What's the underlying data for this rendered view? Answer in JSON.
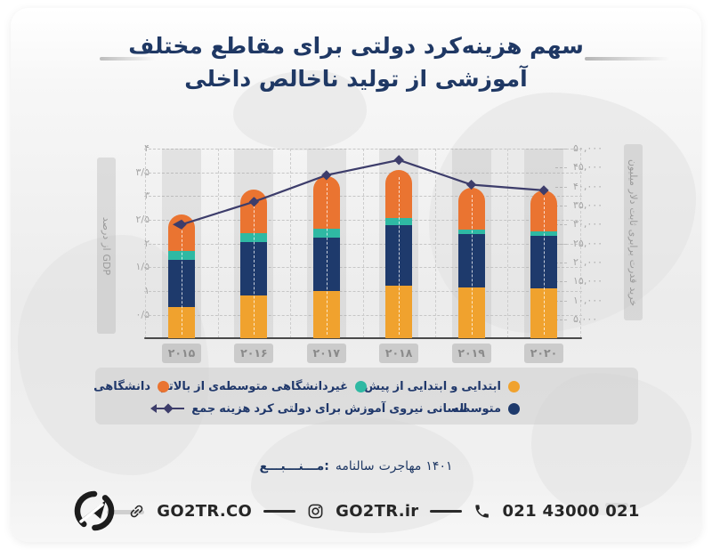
{
  "title": {
    "line1": "سهم هزینه‌کرد دولتی برای مقاطع مختلف",
    "line2": "آموزشی از تولید ناخالص داخلی",
    "color": "#1F3864"
  },
  "chart_data": {
    "type": "bar",
    "stacked": true,
    "grid": true,
    "legend_position": "bottom",
    "categories": [
      "۲۰۱۵",
      "۲۰۱۶",
      "۲۰۱۷",
      "۲۰۱۸",
      "۲۰۱۹",
      "۲۰۲۰"
    ],
    "series": [
      {
        "name": "پیش از ابتدایی و ابتدایی",
        "color": "#F0A22E",
        "values": [
          0.66,
          0.9,
          1.0,
          1.11,
          1.07,
          1.05
        ]
      },
      {
        "name": "متوسطه",
        "color": "#1E3A6C",
        "values": [
          0.99,
          1.13,
          1.13,
          1.28,
          1.13,
          1.11
        ]
      },
      {
        "name": "بالاتر از متوسطه‌ی غیردانشگاهی",
        "color": "#2FB9A3",
        "values": [
          0.19,
          0.19,
          0.19,
          0.15,
          0.1,
          0.09
        ]
      },
      {
        "name": "دانشگاهی",
        "color": "#EA7431",
        "values": [
          0.77,
          0.92,
          1.09,
          1.01,
          0.88,
          0.86
        ]
      }
    ],
    "line": {
      "name": "جمع هزینه کرد دولتی برای آموزش نیروی انسانی",
      "color": "#3D3D6B",
      "axis": "right",
      "values": [
        30000,
        36000,
        43000,
        47000,
        40500,
        39000
      ]
    },
    "left_axis": {
      "label": "درصد از GDP",
      "min": 0,
      "max": 4,
      "ticks": [
        "۰",
        "۰/۵",
        "۱",
        "۱/۵",
        "۲",
        "۲/۵",
        "۳",
        "۳/۵",
        "۴"
      ]
    },
    "right_axis": {
      "label": "میلیون دلار ثابت برابری قدرت خرید",
      "min": 0,
      "max": 50000,
      "ticks": [
        "۰",
        "۵,۰۰۰",
        "۱۰,۰۰۰",
        "۱۵,۰۰۰",
        "۲۰,۰۰۰",
        "۲۵,۰۰۰",
        "۳۰,۰۰۰",
        "۳۵,۰۰۰",
        "۴۰,۰۰۰",
        "۴۵,۰۰۰",
        "۵۰,۰۰۰"
      ]
    }
  },
  "legend": {
    "row1": [
      {
        "label": "پیش از ابتدایی و ابتدایی",
        "color": "#F0A22E"
      },
      {
        "label": "بالاتر از متوسطه‌ی غیردانشگاهی",
        "color": "#2FB9A3"
      },
      {
        "label": "دانشگاهی",
        "color": "#EA7431"
      }
    ],
    "row2_dot": {
      "label": "متوسطه",
      "color": "#1E3A6C"
    },
    "row2_line": {
      "label": "جمع هزینه کرد دولتی برای آموزش نیروی انسانی",
      "color": "#3D3D6B"
    }
  },
  "source": {
    "label": "مـــنـــبـــع:",
    "text": "سالنامه مهاجرت ۱۴۰۱"
  },
  "footer": {
    "website": "GO2TR.CO",
    "instagram": "GO2TR.ir",
    "phone": "021 43000 021"
  }
}
